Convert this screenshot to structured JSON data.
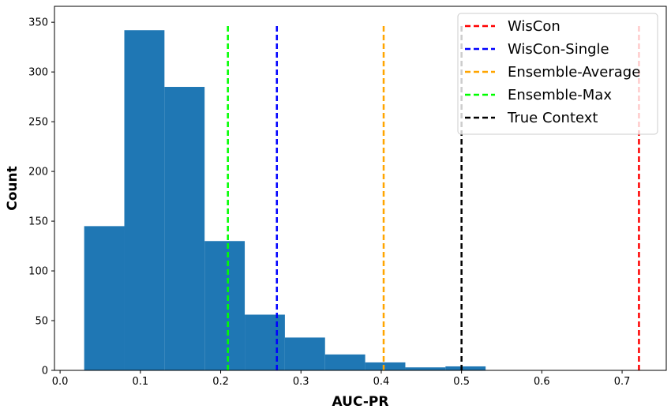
{
  "chart_data": {
    "type": "bar",
    "title": "",
    "xlabel": "AUC-PR",
    "ylabel": "Count",
    "xlim": [
      -0.007,
      0.755
    ],
    "ylim": [
      0,
      366
    ],
    "x_ticks": [
      0.0,
      0.1,
      0.2,
      0.3,
      0.4,
      0.5,
      0.6,
      0.7
    ],
    "x_tick_labels": [
      "0.0",
      "0.1",
      "0.2",
      "0.3",
      "0.4",
      "0.5",
      "0.6",
      "0.7"
    ],
    "y_ticks": [
      0,
      50,
      100,
      150,
      200,
      250,
      300,
      350
    ],
    "y_tick_labels": [
      "0",
      "50",
      "100",
      "150",
      "200",
      "250",
      "300",
      "350"
    ],
    "bar_color": "#1f77b4",
    "bin_edges": [
      0.03,
      0.08,
      0.13,
      0.18,
      0.23,
      0.28,
      0.33,
      0.38,
      0.43,
      0.48,
      0.53
    ],
    "values": [
      145,
      342,
      285,
      130,
      56,
      33,
      16,
      8,
      3,
      4
    ],
    "grid": false,
    "legend_position": "top-right",
    "reference_lines": [
      {
        "name": "WisCon",
        "x": 0.721,
        "color": "#ff0000"
      },
      {
        "name": "WisCon-Single",
        "x": 0.27,
        "color": "#0000ff"
      },
      {
        "name": "Ensemble-Average",
        "x": 0.403,
        "color": "#ffa500"
      },
      {
        "name": "Ensemble-Max",
        "x": 0.209,
        "color": "#00ff00"
      },
      {
        "name": "True Context",
        "x": 0.5,
        "color": "#000000"
      }
    ],
    "reference_line_top": 348
  }
}
